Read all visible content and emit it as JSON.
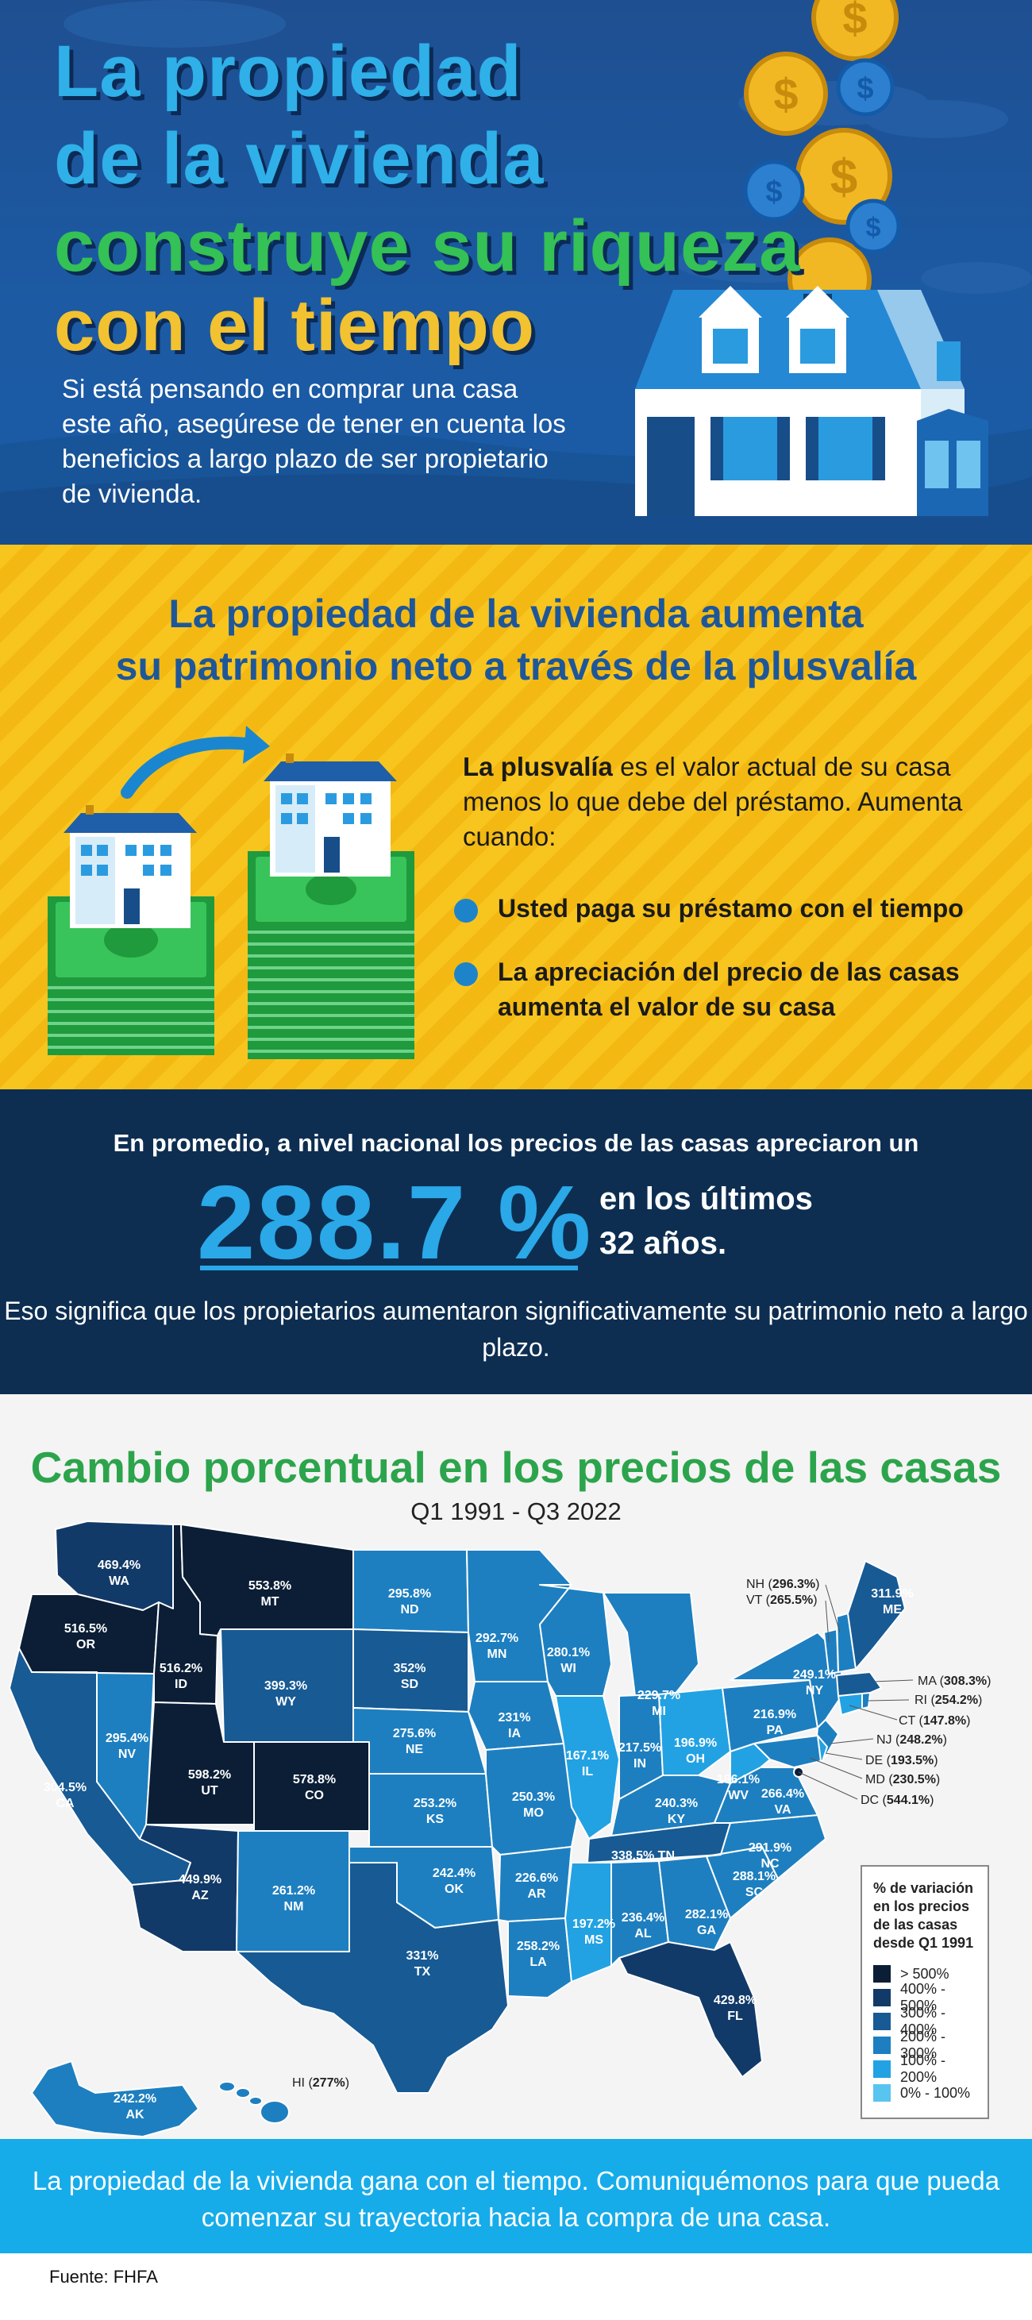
{
  "hero": {
    "title_line1": "La propiedad",
    "title_line2": "de la vivienda",
    "title_line3": "construye su riqueza",
    "title_line4": "con el tiempo",
    "subtitle": "Si está pensando en comprar una casa este año, asegúrese de tener en cuenta los beneficios a largo plazo de ser propietario de vivienda."
  },
  "equity": {
    "heading_line1": "La propiedad de la vivienda aumenta",
    "heading_line2": "su patrimonio neto a través de la plusvalía",
    "definition_bold": "La plusvalía",
    "definition_rest": " es el valor actual de su casa menos lo que debe del préstamo. Aumenta cuando:",
    "bullets": [
      "Usted paga su préstamo con el tiempo",
      "La apreciación del precio de las casas aumenta el valor de su casa"
    ]
  },
  "stat": {
    "intro": "En promedio, a nivel nacional  los precios de las casas apreciaron un",
    "value": "288.7 %",
    "right_line1": "en los últimos",
    "right_line2": "32 años.",
    "footnote": "Eso significa que los propietarios aumentaron significativamente su patrimonio neto a largo plazo."
  },
  "map": {
    "title": "Cambio porcentual en los precios de las casas",
    "period": "Q1 1991 - Q3 2022",
    "legend_title": "% de variación en los precios de las casas desde Q1 1991",
    "legend": [
      {
        "label": "> 500%",
        "color": "#0b1e36"
      },
      {
        "label": "400% - 500%",
        "color": "#123a68"
      },
      {
        "label": "300% - 400%",
        "color": "#175a94"
      },
      {
        "label": "200% - 300%",
        "color": "#1d7fc0"
      },
      {
        "label": "100% - 200%",
        "color": "#22a2e3"
      },
      {
        "label": "0% - 100%",
        "color": "#58c4f0"
      }
    ],
    "states": {
      "WA": "469.4%",
      "OR": "516.5%",
      "CA": "304.5%",
      "ID": "516.2%",
      "NV": "295.4%",
      "MT": "553.8%",
      "WY": "399.3%",
      "UT": "598.2%",
      "AZ": "449.9%",
      "CO": "578.8%",
      "NM": "261.2%",
      "ND": "295.8%",
      "SD": "352%",
      "NE": "275.6%",
      "KS": "253.2%",
      "OK": "242.4%",
      "TX": "331%",
      "MN": "292.7%",
      "IA": "231%",
      "MO": "250.3%",
      "AR": "226.6%",
      "LA": "258.2%",
      "WI": "280.1%",
      "IL": "167.1%",
      "MI": "229.7%",
      "IN": "217.5%",
      "OH": "196.9%",
      "KY": "240.3%",
      "TN": "338.5%",
      "MS": "197.2%",
      "AL": "236.4%",
      "GA": "282.1%",
      "FL": "429.8%",
      "SC": "288.1%",
      "NC": "291.9%",
      "VA": "266.4%",
      "WV": "186.1%",
      "PA": "216.9%",
      "NY": "249.1%",
      "ME": "311.9%",
      "AK": "242.2%",
      "HI": "277%",
      "NH": "296.3%",
      "VT": "265.5%",
      "MA": "308.3%",
      "RI": "254.2%",
      "CT": "147.8%",
      "NJ": "248.2%",
      "DE": "193.5%",
      "MD": "230.5%",
      "DC": "544.1%"
    }
  },
  "footer": {
    "text": "La propiedad de la vivienda gana con el tiempo. Comuniquémonos para que pueda comenzar su trayectoria hacia la compra de una casa.",
    "source": "Fuente: FHFA"
  }
}
